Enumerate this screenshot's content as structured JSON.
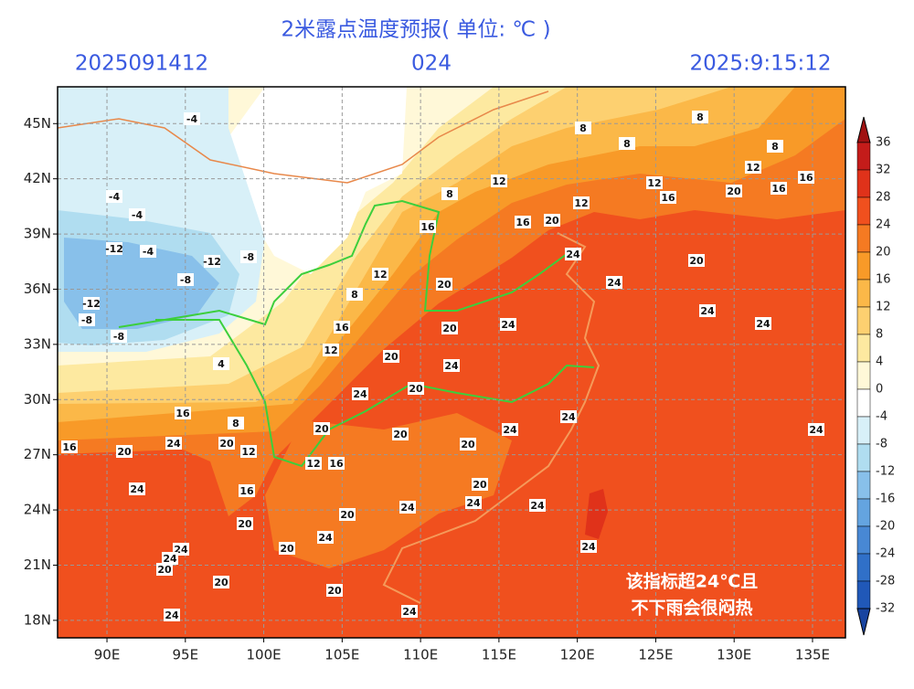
{
  "header": {
    "title": "2米露点温度预报( 单位: ℃ )",
    "init_time": "2025091412",
    "lead": "024",
    "valid_time": "2025:9:15:12"
  },
  "map": {
    "xlim": [
      86.85,
      137.1
    ],
    "ylim": [
      17.05,
      47
    ],
    "xticks": [
      {
        "value": 90,
        "label": "90E"
      },
      {
        "value": 95,
        "label": "95E"
      },
      {
        "value": 100,
        "label": "100E"
      },
      {
        "value": 105,
        "label": "105E"
      },
      {
        "value": 110,
        "label": "110E"
      },
      {
        "value": 115,
        "label": "115E"
      },
      {
        "value": 120,
        "label": "120E"
      },
      {
        "value": 125,
        "label": "125E"
      },
      {
        "value": 130,
        "label": "130E"
      },
      {
        "value": 135,
        "label": "135E"
      }
    ],
    "yticks": [
      {
        "value": 45,
        "label": "45N"
      },
      {
        "value": 42,
        "label": "42N"
      },
      {
        "value": 39,
        "label": "39N"
      },
      {
        "value": 36,
        "label": "36N"
      },
      {
        "value": 33,
        "label": "33N"
      },
      {
        "value": 30,
        "label": "30N"
      },
      {
        "value": 27,
        "label": "27N"
      },
      {
        "value": 24,
        "label": "24N"
      },
      {
        "value": 21,
        "label": "21N"
      },
      {
        "value": 18,
        "label": "18N"
      }
    ],
    "grid": true,
    "contour_labels": [
      -4,
      -4,
      -4,
      -12,
      -4,
      -12,
      -8,
      -12,
      -8,
      -8,
      -8,
      8,
      8,
      8,
      8,
      8,
      12,
      12,
      12,
      12,
      16,
      16,
      16,
      20,
      20,
      16,
      16,
      24,
      20,
      12,
      8,
      20,
      24,
      24,
      24,
      24,
      20,
      16,
      12,
      20,
      24,
      24,
      20,
      4,
      16,
      8,
      16,
      20,
      24,
      20,
      12,
      12,
      16,
      20,
      20,
      20,
      24,
      24,
      24,
      24,
      16,
      20,
      24,
      24,
      24,
      20,
      20,
      24,
      20,
      24,
      24,
      20,
      20,
      20,
      24,
      24,
      24
    ]
  },
  "annotation": [
    "该指标超24℃且",
    "不下雨会很闷热"
  ],
  "colorbar": {
    "ticks": [
      36,
      32,
      28,
      24,
      20,
      16,
      12,
      8,
      4,
      0,
      -4,
      -8,
      -12,
      -16,
      -20,
      -24,
      -28,
      -32
    ],
    "colors": [
      "#a01212",
      "#c41c1a",
      "#e0321a",
      "#f0501e",
      "#f57a22",
      "#f89a28",
      "#fbb848",
      "#fdd070",
      "#fde9a0",
      "#fff8d8",
      "#ffffff",
      "#d8f0f8",
      "#b0ddf0",
      "#88c0ea",
      "#64a4e0",
      "#4888d4",
      "#3070c8",
      "#2058b8",
      "#1844a0"
    ]
  }
}
